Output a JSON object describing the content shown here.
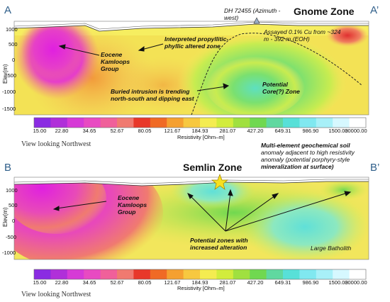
{
  "panel_a": {
    "corner_left": "A",
    "corner_right": "A’",
    "zone_title": "Gnome Zone",
    "drillhole": "DH 72455 (Azimuth - west)",
    "assay": "Assayed 0.1% Cu from ~324 m - 392 m (EOH)",
    "label_kamloops": "Eocene Kamloops Group",
    "label_propylitic": "Interpreted propyllitic-phyllic altered zone",
    "label_intrusion": "Buried intrusion is trending north-south and dipping east",
    "label_core": "Potential Core(?) Zone",
    "elev_axis_label": "Elev(m)",
    "elev_ticks": [
      "1000",
      "500",
      "0",
      "-500",
      "-1000",
      "-1500"
    ],
    "view_caption": "View looking Northwest"
  },
  "panel_b": {
    "corner_left": "B",
    "corner_right": "B’",
    "zone_title": "Semlin Zone",
    "label_soil_title": "Multi-element geochemical soil",
    "label_soil_line1": "anomaly adjacent to high resistivity",
    "label_soil_line2": "anomaly (potential porphyry-style",
    "label_soil_line3": "mineralization at surface)",
    "label_kamloops": "Eocene Kamloops Group",
    "label_potential": "Potential zones with increased alteration",
    "label_batholith": "Large Batholith",
    "elev_axis_label": "Elev(m)",
    "elev_ticks": [
      "1000",
      "500",
      "0",
      "-500",
      "-1000"
    ],
    "view_caption": "View looking Northwest"
  },
  "scale": {
    "labels": [
      "15.00",
      "22.80",
      "34.65",
      "52.67",
      "80.05",
      "121.67",
      "184.93",
      "281.07",
      "427.20",
      "649.31",
      "986.90",
      "1500.00",
      "30000.00"
    ],
    "title": "Resistivity [Ohm–m]",
    "colors": [
      "#8a2be2",
      "#b02fd9",
      "#d63ad6",
      "#e84ac2",
      "#f0609a",
      "#f07a70",
      "#e8382a",
      "#f06a25",
      "#f5a030",
      "#f7c840",
      "#f4ec50",
      "#d2ec3c",
      "#a0e040",
      "#70d850",
      "#60d8a0",
      "#58e0d8",
      "#80e8f0",
      "#a8f0f8",
      "#d6f8ff",
      "#ffffff"
    ]
  }
}
